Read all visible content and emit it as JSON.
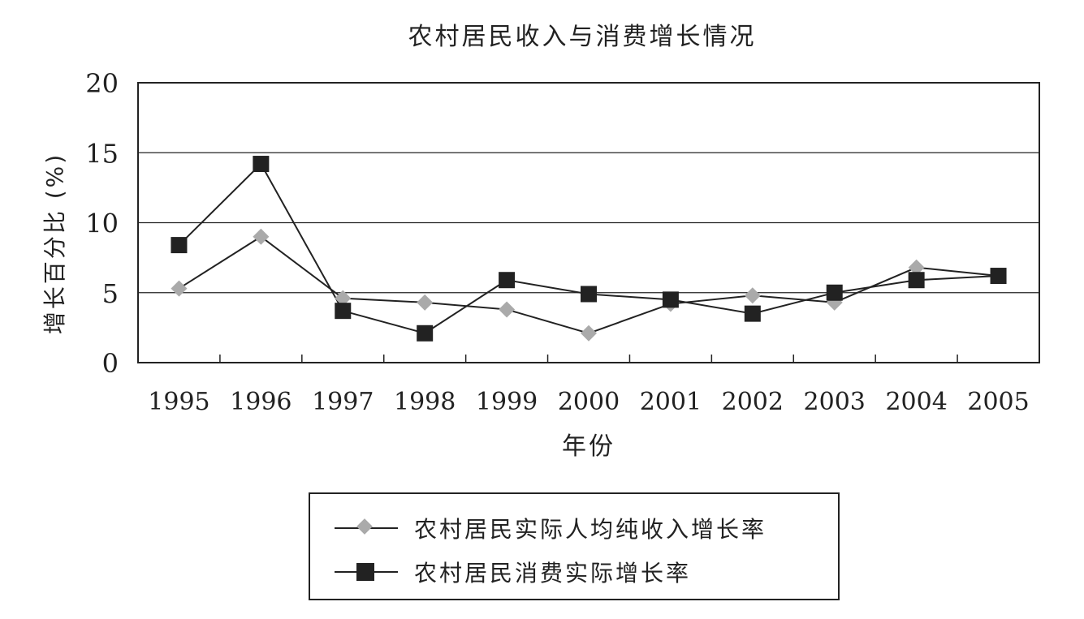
{
  "chart_data": {
    "type": "line",
    "title": "农村居民收入与消费增长情况",
    "xlabel": "年份",
    "ylabel": "增长百分比 (%)",
    "categories": [
      "1995",
      "1996",
      "1997",
      "1998",
      "1999",
      "2000",
      "2001",
      "2002",
      "2003",
      "2004",
      "2005"
    ],
    "ylim": [
      0,
      20
    ],
    "yticks": [
      "0",
      "5",
      "10",
      "15",
      "20"
    ],
    "grid": "horizontal",
    "legend_position": "bottom",
    "series": [
      {
        "name": "农村居民实际人均纯收入增长率",
        "marker": "diamond",
        "color": "#aaaaaa",
        "values": [
          5.3,
          9.0,
          4.6,
          4.3,
          3.8,
          2.1,
          4.2,
          4.8,
          4.3,
          6.8,
          6.2
        ]
      },
      {
        "name": "农村居民消费实际增长率",
        "marker": "square",
        "color": "#222222",
        "values": [
          8.4,
          14.2,
          3.7,
          2.1,
          5.9,
          4.9,
          4.5,
          3.5,
          5.0,
          5.9,
          6.2
        ]
      }
    ]
  }
}
